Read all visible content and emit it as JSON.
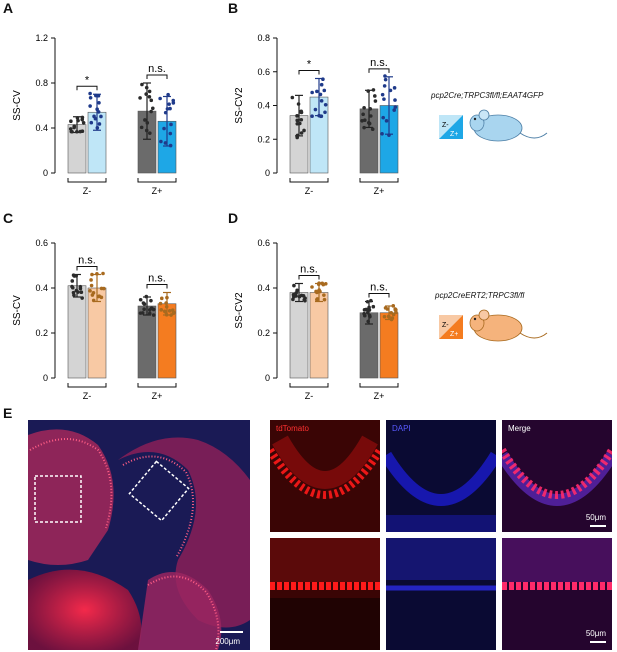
{
  "panels": {
    "A": "A",
    "B": "B",
    "C": "C",
    "D": "D",
    "E": "E"
  },
  "mouse1": {
    "label": "pcp2Cre;TRPC3fl/fl;EAAT4GFP",
    "zminus": "Z-",
    "zplus": "Z+"
  },
  "mouse2": {
    "label": "pcp2CreERT2;TRPC3fl/fl",
    "zminus": "Z-",
    "zplus": "Z+"
  },
  "colors": {
    "ctrl_minus": "#d4d4d4",
    "ctrl_plus": "#6b6b6b",
    "ko1_minus": "#bfe6f7",
    "ko1_plus": "#1ea7e6",
    "ko2_minus": "#f8c9a4",
    "ko2_plus": "#f47c20",
    "dot_ctrl": "#2b2b2b",
    "dot_ko1": "#1f3a8a",
    "dot_ko2": "#a86a1f"
  },
  "chart_data": [
    {
      "panel": "A",
      "type": "bar",
      "ylabel": "SS-CV",
      "ylim": [
        0,
        1.2
      ],
      "yticks": [
        "0",
        "0.4",
        "0.8",
        "1.2"
      ],
      "categories": [
        "Z-",
        "Z+"
      ],
      "series": [
        {
          "values": [
            0.43,
            0.55
          ],
          "errors": [
            0.07,
            0.25
          ],
          "color_key": "ctrl"
        },
        {
          "values": [
            0.54,
            0.46
          ],
          "errors": [
            0.16,
            0.22
          ],
          "color_key": "ko1"
        }
      ],
      "significance": [
        "*",
        "n.s."
      ]
    },
    {
      "panel": "B",
      "type": "bar",
      "ylabel": "SS-CV2",
      "ylim": [
        0,
        0.8
      ],
      "yticks": [
        "0",
        "0.2",
        "0.4",
        "0.6",
        "0.8"
      ],
      "categories": [
        "Z-",
        "Z+"
      ],
      "series": [
        {
          "values": [
            0.34,
            0.38
          ],
          "errors": [
            0.12,
            0.11
          ],
          "color_key": "ctrl"
        },
        {
          "values": [
            0.45,
            0.4
          ],
          "errors": [
            0.11,
            0.17
          ],
          "color_key": "ko1"
        }
      ],
      "significance": [
        "*",
        "n.s."
      ]
    },
    {
      "panel": "C",
      "type": "bar",
      "ylabel": "SS-CV",
      "ylim": [
        0,
        0.6
      ],
      "yticks": [
        "0",
        "0.2",
        "0.4",
        "0.6"
      ],
      "categories": [
        "Z-",
        "Z+"
      ],
      "series": [
        {
          "values": [
            0.41,
            0.32
          ],
          "errors": [
            0.05,
            0.04
          ],
          "color_key": "ctrl"
        },
        {
          "values": [
            0.4,
            0.33
          ],
          "errors": [
            0.06,
            0.05
          ],
          "color_key": "ko2"
        }
      ],
      "significance": [
        "n.s.",
        "n.s."
      ]
    },
    {
      "panel": "D",
      "type": "bar",
      "ylabel": "SS-CV2",
      "ylim": [
        0,
        0.6
      ],
      "yticks": [
        "0",
        "0.2",
        "0.4",
        "0.6"
      ],
      "categories": [
        "Z-",
        "Z+"
      ],
      "series": [
        {
          "values": [
            0.38,
            0.29
          ],
          "errors": [
            0.04,
            0.05
          ],
          "color_key": "ctrl"
        },
        {
          "values": [
            0.38,
            0.29
          ],
          "errors": [
            0.04,
            0.03
          ],
          "color_key": "ko2"
        }
      ],
      "significance": [
        "n.s.",
        "n.s."
      ]
    }
  ],
  "micrographs": {
    "tdtomato": "tdTomato",
    "dapi": "DAPI",
    "merge": "Merge",
    "scale_overview": "200μm",
    "scale_top": "50μm",
    "scale_bottom": "50μm"
  }
}
